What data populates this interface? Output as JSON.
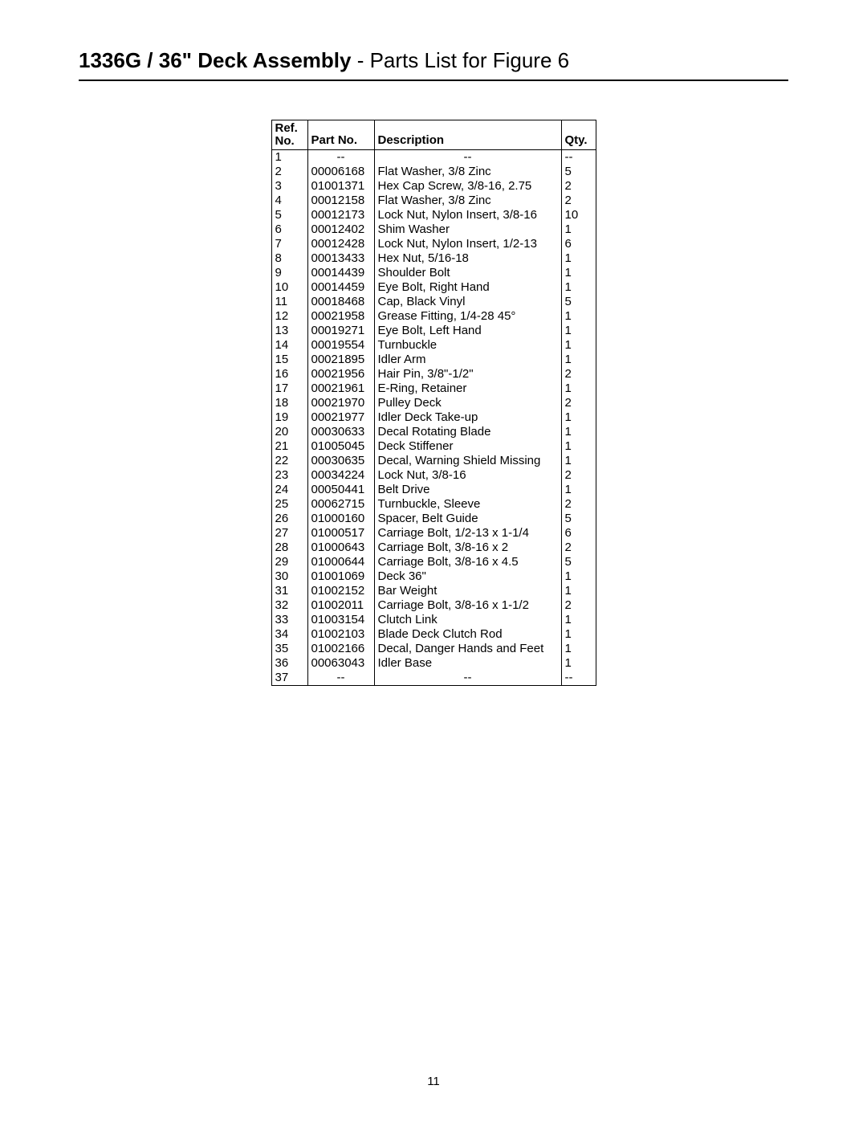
{
  "header": {
    "title_bold": "1336G / 36\" Deck Assembly",
    "title_reg": " - Parts List for Figure 6"
  },
  "table": {
    "col_ref_line1": "Ref.",
    "col_ref_line2": "No.",
    "col_part": "Part No.",
    "col_desc": "Description",
    "col_qty": "Qty.",
    "rows": [
      {
        "ref": "1",
        "part": "--",
        "desc": "--",
        "qty": "--"
      },
      {
        "ref": "2",
        "part": "00006168",
        "desc": "Flat Washer, 3/8 Zinc",
        "qty": "5"
      },
      {
        "ref": "3",
        "part": "01001371",
        "desc": "Hex  Cap Screw, 3/8-16, 2.75",
        "qty": "2"
      },
      {
        "ref": "4",
        "part": "00012158",
        "desc": "Flat Washer, 3/8 Zinc",
        "qty": "2"
      },
      {
        "ref": "5",
        "part": "00012173",
        "desc": "Lock Nut, Nylon Insert, 3/8-16",
        "qty": "10"
      },
      {
        "ref": "6",
        "part": "00012402",
        "desc": "Shim Washer",
        "qty": "1"
      },
      {
        "ref": "7",
        "part": "00012428",
        "desc": "Lock Nut, Nylon Insert, 1/2-13",
        "qty": "6"
      },
      {
        "ref": "8",
        "part": "00013433",
        "desc": "Hex Nut, 5/16-18",
        "qty": "1"
      },
      {
        "ref": "9",
        "part": "00014439",
        "desc": "Shoulder Bolt",
        "qty": "1"
      },
      {
        "ref": "10",
        "part": "00014459",
        "desc": "Eye Bolt, Right Hand",
        "qty": "1"
      },
      {
        "ref": "11",
        "part": "00018468",
        "desc": "Cap, Black Vinyl",
        "qty": "5"
      },
      {
        "ref": "12",
        "part": "00021958",
        "desc": "Grease Fitting, 1/4-28 45°",
        "qty": "1"
      },
      {
        "ref": "13",
        "part": "00019271",
        "desc": "Eye Bolt, Left Hand",
        "qty": "1"
      },
      {
        "ref": "14",
        "part": "00019554",
        "desc": "Turnbuckle",
        "qty": "1"
      },
      {
        "ref": "15",
        "part": "00021895",
        "desc": "Idler Arm",
        "qty": "1"
      },
      {
        "ref": "16",
        "part": "00021956",
        "desc": "Hair Pin, 3/8\"-1/2\"",
        "qty": "2"
      },
      {
        "ref": "17",
        "part": "00021961",
        "desc": "E-Ring, Retainer",
        "qty": "1"
      },
      {
        "ref": "18",
        "part": "00021970",
        "desc": "Pulley Deck",
        "qty": "2"
      },
      {
        "ref": "19",
        "part": "00021977",
        "desc": "Idler Deck Take-up",
        "qty": "1"
      },
      {
        "ref": "20",
        "part": "00030633",
        "desc": "Decal Rotating Blade",
        "qty": "1"
      },
      {
        "ref": "21",
        "part": "01005045",
        "desc": "Deck Stiffener",
        "qty": "1"
      },
      {
        "ref": "22",
        "part": "00030635",
        "desc": "Decal, Warning Shield Missing",
        "qty": "1"
      },
      {
        "ref": "23",
        "part": "00034224",
        "desc": "Lock Nut, 3/8-16",
        "qty": "2"
      },
      {
        "ref": "24",
        "part": "00050441",
        "desc": "Belt Drive",
        "qty": "1"
      },
      {
        "ref": "25",
        "part": "00062715",
        "desc": "Turnbuckle, Sleeve",
        "qty": "2"
      },
      {
        "ref": "26",
        "part": "01000160",
        "desc": "Spacer, Belt Guide",
        "qty": "5"
      },
      {
        "ref": "27",
        "part": "01000517",
        "desc": "Carriage Bolt, 1/2-13 x 1-1/4",
        "qty": "6"
      },
      {
        "ref": "28",
        "part": "01000643",
        "desc": "Carriage Bolt, 3/8-16 x 2",
        "qty": "2"
      },
      {
        "ref": "29",
        "part": "01000644",
        "desc": "Carriage Bolt, 3/8-16 x 4.5",
        "qty": "5"
      },
      {
        "ref": "30",
        "part": "01001069",
        "desc": "Deck 36\"",
        "qty": "1"
      },
      {
        "ref": "31",
        "part": "01002152",
        "desc": "Bar Weight",
        "qty": "1"
      },
      {
        "ref": "32",
        "part": "01002011",
        "desc": "Carriage Bolt, 3/8-16 x 1-1/2",
        "qty": "2"
      },
      {
        "ref": "33",
        "part": "01003154",
        "desc": "Clutch Link",
        "qty": "1"
      },
      {
        "ref": "34",
        "part": "01002103",
        "desc": "Blade Deck Clutch Rod",
        "qty": "1"
      },
      {
        "ref": "35",
        "part": "01002166",
        "desc": "Decal, Danger Hands and Feet",
        "qty": "1"
      },
      {
        "ref": "36",
        "part": "00063043",
        "desc": "Idler Base",
        "qty": "1"
      },
      {
        "ref": "37",
        "part": "--",
        "desc": "--",
        "qty": "--"
      }
    ]
  },
  "page_number": "11"
}
